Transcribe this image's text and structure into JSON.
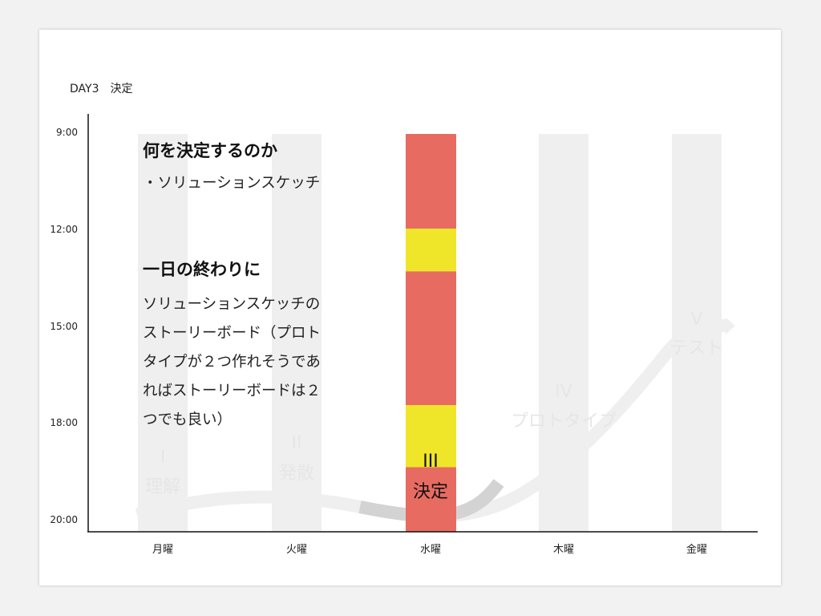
{
  "slide_title": "DAY3　決定",
  "time_axis": [
    "9:00",
    "12:00",
    "15:00",
    "18:00",
    "20:00"
  ],
  "days": [
    {
      "label": "月曜",
      "numeral": "I",
      "phase": "理解",
      "active": false
    },
    {
      "label": "火曜",
      "numeral": "II",
      "phase": "発散",
      "active": false
    },
    {
      "label": "水曜",
      "numeral": "III",
      "phase": "決定",
      "active": true
    },
    {
      "label": "木曜",
      "numeral": "IV",
      "phase": "プロトタイプ",
      "active": false
    },
    {
      "label": "金曜",
      "numeral": "V",
      "phase": "テスト",
      "active": false
    }
  ],
  "schedule_blocks": [
    {
      "day": "水曜",
      "start": "9:00",
      "end": "12:00",
      "kind": "work",
      "color": "#e86b62"
    },
    {
      "day": "水曜",
      "start": "12:00",
      "end": "13:20",
      "kind": "break",
      "color": "#efe62a"
    },
    {
      "day": "水曜",
      "start": "13:20",
      "end": "17:30",
      "kind": "work",
      "color": "#e86b62"
    },
    {
      "day": "水曜",
      "start": "17:30",
      "end": "18:50",
      "kind": "break",
      "color": "#efe62a"
    },
    {
      "day": "水曜",
      "start": "18:50",
      "end": "20:00",
      "kind": "work",
      "color": "#e86b62"
    }
  ],
  "notes": {
    "heading1": "何を決定するのか",
    "item1": "・ソリューションスケッチ",
    "heading2": "一日の終わりに",
    "body_lines": [
      "ソリューションスケッチの",
      "ストーリーボード（プロト",
      "タイプが２つ作れそうであ",
      "ればストーリーボードは２",
      "つでも良い）"
    ]
  },
  "colors": {
    "work": "#e86b62",
    "break": "#efe62a",
    "inactive_column": "#efefef",
    "flow_arrow": "#efefef",
    "flow_highlight": "#d3d3d3"
  }
}
